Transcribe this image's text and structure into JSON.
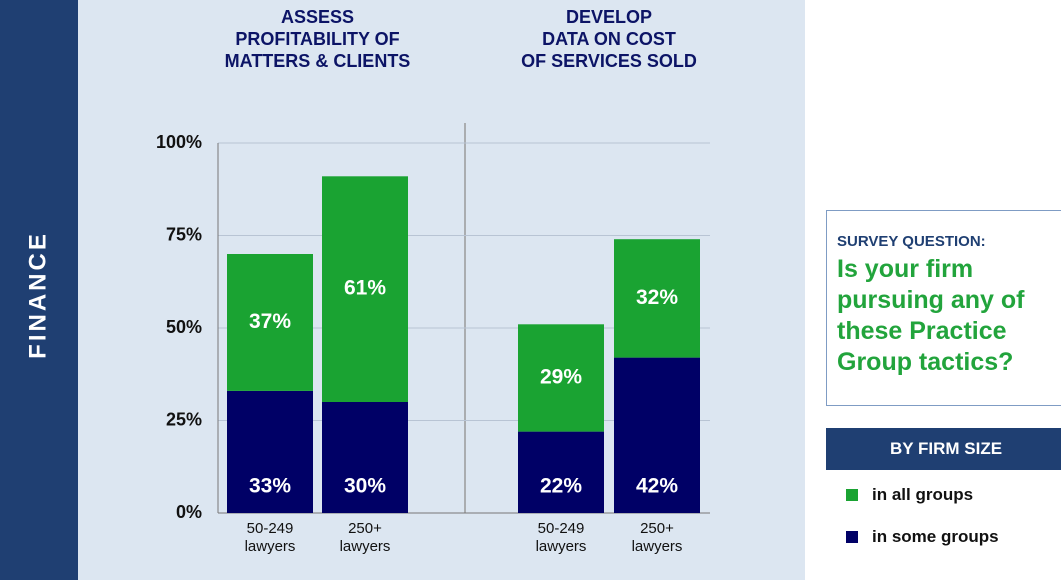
{
  "chart_data": {
    "type": "bar",
    "stacked": true,
    "side_label": "FINANCE",
    "groups": [
      {
        "title": [
          "ASSESS",
          "PROFITABILITY OF",
          "MATTERS & CLIENTS"
        ]
      },
      {
        "title": [
          "DEVELOP",
          "DATA ON COST",
          "OF SERVICES SOLD"
        ]
      }
    ],
    "categories": [
      "50-249 lawyers",
      "250+ lawyers",
      "50-249 lawyers",
      "250+ lawyers"
    ],
    "series": [
      {
        "name": "in some groups",
        "color": "#000066",
        "values": [
          33,
          30,
          22,
          42
        ],
        "value_labels": [
          "33%",
          "30%",
          "22%",
          "42%"
        ]
      },
      {
        "name": "in all groups",
        "color": "#1aa332",
        "values": [
          37,
          61,
          29,
          32
        ],
        "value_labels": [
          "37%",
          "61%",
          "29%",
          "32%"
        ]
      }
    ],
    "ylim": [
      0,
      100
    ],
    "yticks": [
      {
        "value": 0,
        "label": "0%"
      },
      {
        "value": 25,
        "label": "25%"
      },
      {
        "value": 50,
        "label": "50%"
      },
      {
        "value": 75,
        "label": "75%"
      },
      {
        "value": 100,
        "label": "100%"
      }
    ],
    "grid": true,
    "legend_title": "BY FIRM SIZE"
  },
  "survey": {
    "label": "SURVEY QUESTION:",
    "question": "Is your firm pursuing any of these Practice Group tactics?"
  }
}
